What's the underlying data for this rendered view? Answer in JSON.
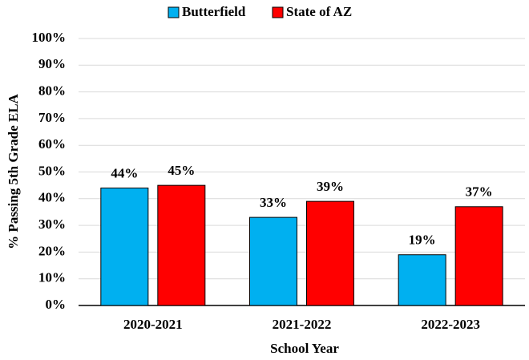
{
  "chart_data": {
    "type": "bar",
    "categories": [
      "2020-2021",
      "2021-2022",
      "2022-2023"
    ],
    "series": [
      {
        "name": "Butterfield",
        "color": "#00b0f0",
        "values": [
          44,
          33,
          19
        ],
        "value_labels": [
          "44%",
          "33%",
          "19%"
        ]
      },
      {
        "name": "State of AZ",
        "color": "#ff0000",
        "values": [
          45,
          39,
          37
        ],
        "value_labels": [
          "45%",
          "39%",
          "37%"
        ]
      }
    ],
    "xlabel": "School Year",
    "ylabel": "% Passing 5th Grade ELA",
    "ylim": [
      0,
      100
    ],
    "yticks": [
      {
        "value": 0,
        "label": "0%"
      },
      {
        "value": 10,
        "label": "10%"
      },
      {
        "value": 20,
        "label": "20%"
      },
      {
        "value": 30,
        "label": "30%"
      },
      {
        "value": 40,
        "label": "40%"
      },
      {
        "value": 50,
        "label": "50%"
      },
      {
        "value": 60,
        "label": "60%"
      },
      {
        "value": 70,
        "label": "70%"
      },
      {
        "value": 80,
        "label": "80%"
      },
      {
        "value": 90,
        "label": "90%"
      },
      {
        "value": 100,
        "label": "100%"
      }
    ],
    "grid": true,
    "legend": "top"
  }
}
